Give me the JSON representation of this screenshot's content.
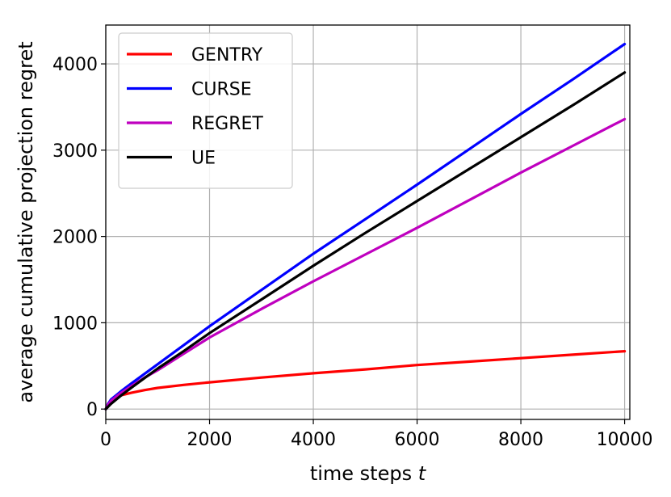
{
  "chart_data": {
    "type": "line",
    "title": "",
    "xlabel": "time steps ",
    "xlabel_var": "t",
    "ylabel": "average cumulative projection regret",
    "xlim": [
      0,
      10100
    ],
    "ylim": [
      -120,
      4450
    ],
    "xticks": [
      0,
      2000,
      4000,
      6000,
      8000,
      10000
    ],
    "yticks": [
      0,
      1000,
      2000,
      3000,
      4000
    ],
    "grid": true,
    "legend": "top-left",
    "series": [
      {
        "name": "GENTRY",
        "color": "#ff0000",
        "x": [
          0,
          50,
          100,
          200,
          300,
          500,
          750,
          1000,
          1500,
          2000,
          3000,
          4000,
          5000,
          6000,
          7000,
          8000,
          9000,
          10000
        ],
        "y": [
          0,
          65,
          100,
          135,
          160,
          190,
          220,
          245,
          280,
          310,
          365,
          415,
          460,
          510,
          550,
          590,
          630,
          670
        ]
      },
      {
        "name": "CURSE",
        "color": "#0000ff",
        "x": [
          0,
          50,
          100,
          200,
          300,
          500,
          750,
          1000,
          1500,
          2000,
          3000,
          4000,
          5000,
          6000,
          7000,
          8000,
          9000,
          10000
        ],
        "y": [
          0,
          65,
          110,
          160,
          210,
          300,
          410,
          520,
          740,
          960,
          1380,
          1800,
          2200,
          2600,
          3010,
          3420,
          3820,
          4230
        ]
      },
      {
        "name": "REGRET",
        "color": "#bf00bf",
        "x": [
          0,
          50,
          100,
          200,
          300,
          500,
          750,
          1000,
          1500,
          2000,
          3000,
          4000,
          5000,
          6000,
          7000,
          8000,
          9000,
          10000
        ],
        "y": [
          0,
          55,
          95,
          145,
          190,
          270,
          365,
          450,
          640,
          830,
          1160,
          1480,
          1790,
          2100,
          2420,
          2740,
          3050,
          3360
        ]
      },
      {
        "name": "UE",
        "color": "#000000",
        "x": [
          0,
          50,
          100,
          200,
          300,
          500,
          750,
          1000,
          1500,
          2000,
          3000,
          4000,
          5000,
          6000,
          7000,
          8000,
          9000,
          10000
        ],
        "y": [
          0,
          30,
          60,
          110,
          160,
          250,
          360,
          470,
          670,
          880,
          1270,
          1660,
          2040,
          2410,
          2780,
          3150,
          3520,
          3900
        ]
      }
    ]
  }
}
